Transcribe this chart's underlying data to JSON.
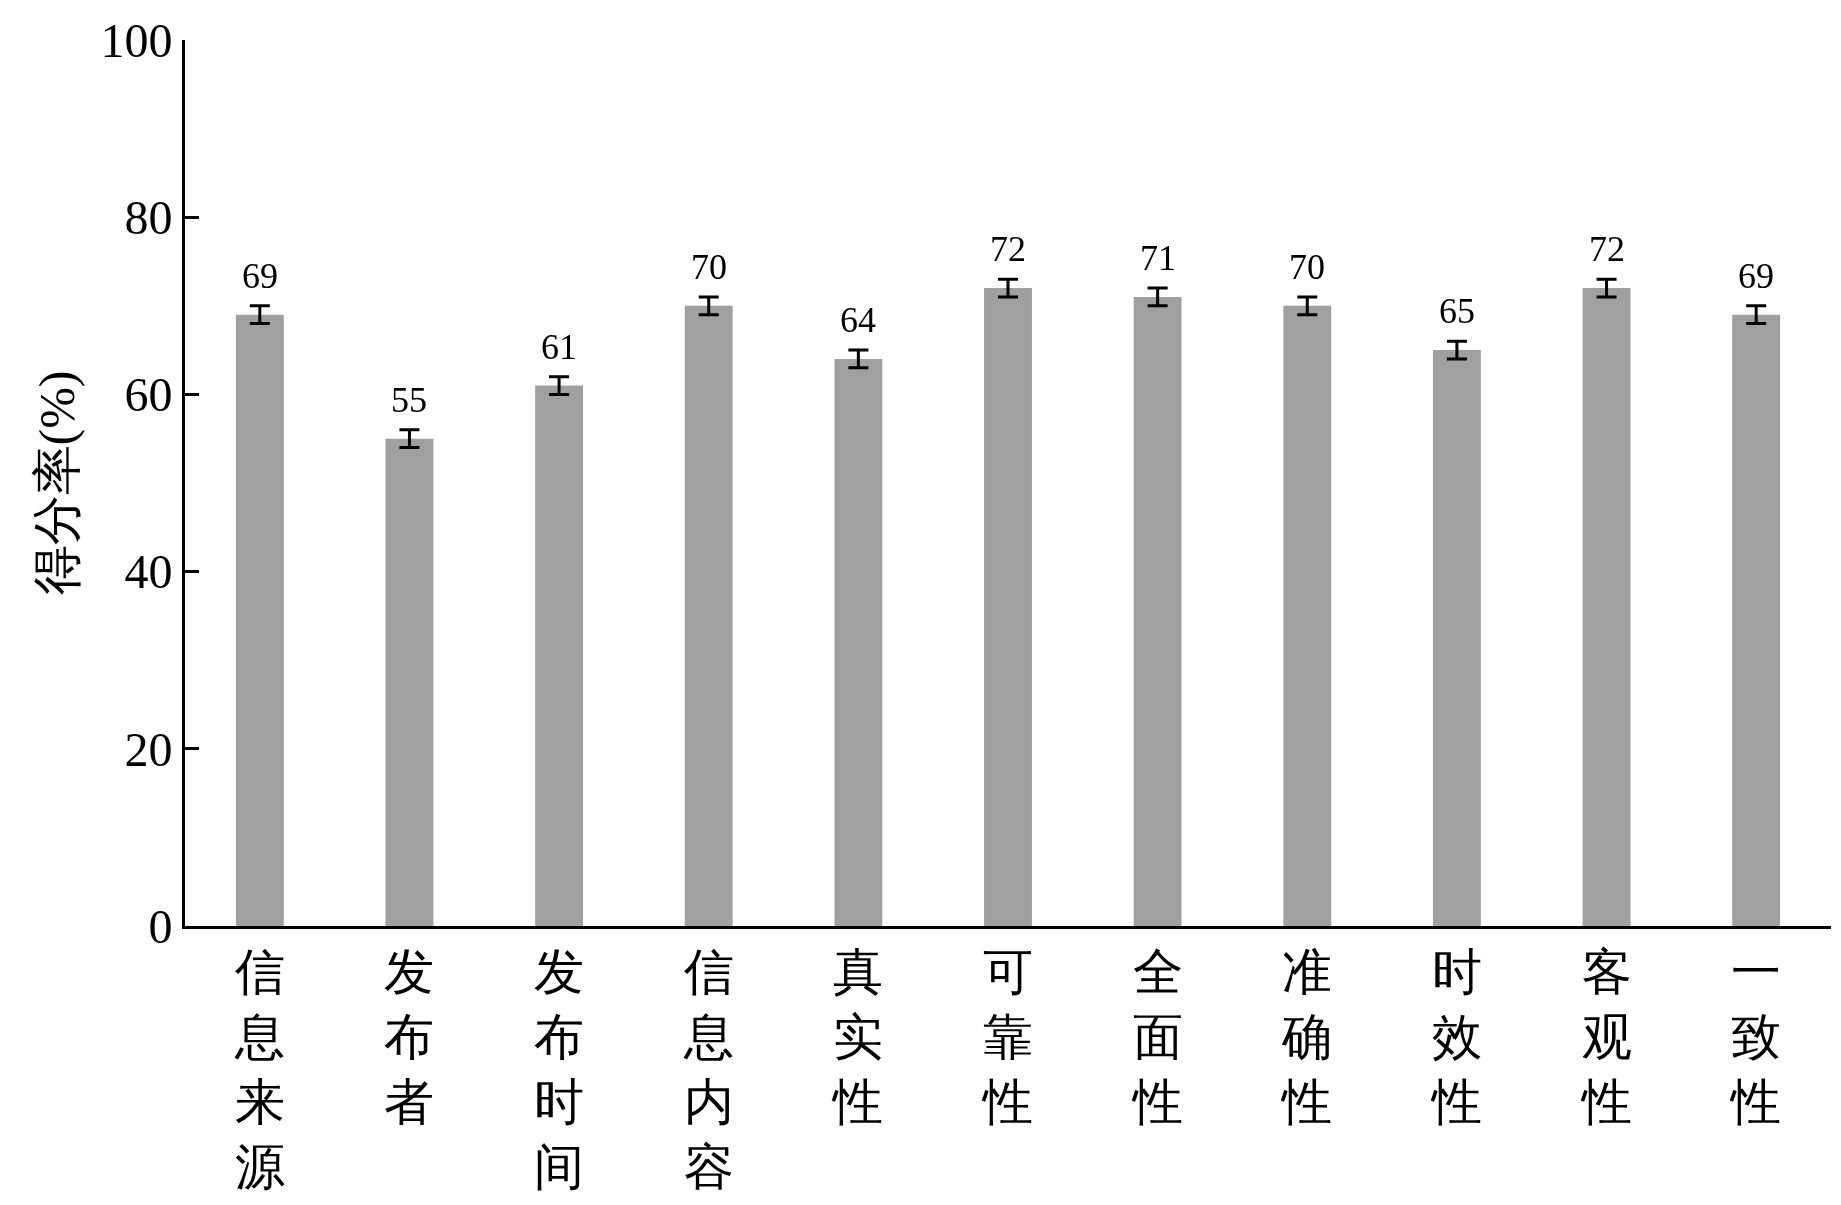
{
  "chart_data": {
    "type": "bar",
    "ylabel": "得分率(%)",
    "categories": [
      "信息来源",
      "发布者",
      "发布时间",
      "信息内容",
      "真实性",
      "可靠性",
      "全面性",
      "准确性",
      "时效性",
      "客观性",
      "一致性"
    ],
    "values": [
      69,
      55,
      61,
      70,
      64,
      72,
      71,
      70,
      65,
      72,
      69
    ],
    "errors": [
      1,
      1,
      1,
      1,
      1,
      1,
      1,
      1,
      1,
      1,
      1
    ],
    "color": "#a0a0a0",
    "data_labels": true,
    "ylim": [
      0,
      100
    ],
    "yticks": [
      0,
      20,
      40,
      60,
      80,
      100
    ]
  }
}
